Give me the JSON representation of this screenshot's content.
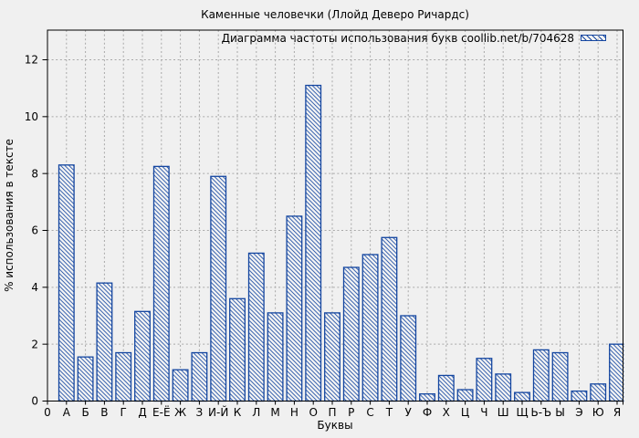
{
  "chart_data": {
    "type": "bar",
    "title": "Каменные человечки (Ллойд Деверо Ричардс)",
    "legend_label": "Диаграмма частоты использования букв coollib.net/b/704628",
    "legend_position": "top-right-inside",
    "xlabel": "Буквы",
    "ylabel": "% использования в тексте",
    "x_origin_label": "0",
    "yticks": [
      0,
      2,
      4,
      6,
      8,
      10,
      12
    ],
    "ylim": [
      0,
      13
    ],
    "grid": true,
    "categories": [
      "А",
      "Б",
      "В",
      "Г",
      "Д",
      "Е-Ё",
      "Ж",
      "З",
      "И-Й",
      "К",
      "Л",
      "М",
      "Н",
      "О",
      "П",
      "Р",
      "С",
      "Т",
      "У",
      "Ф",
      "Х",
      "Ц",
      "Ч",
      "Ш",
      "Щ",
      "Ь-Ъ",
      "Ы",
      "Э",
      "Ю",
      "Я"
    ],
    "values": [
      8.3,
      1.55,
      4.15,
      1.7,
      3.15,
      8.25,
      1.1,
      1.7,
      7.9,
      3.6,
      5.2,
      3.1,
      6.5,
      11.1,
      3.1,
      4.7,
      5.15,
      5.75,
      3.0,
      0.25,
      0.9,
      0.4,
      1.5,
      0.95,
      0.3,
      1.8,
      1.7,
      0.35,
      0.6,
      2.0
    ],
    "colors": {
      "bar": "#1446a0",
      "bar_fill": "#f4f4f4",
      "grid": "#a8a8a8",
      "axis": "#000000",
      "background": "#f0f0f0",
      "text": "#000000"
    }
  }
}
